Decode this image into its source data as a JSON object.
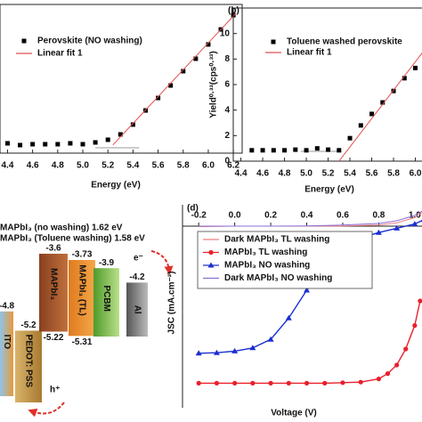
{
  "chart_data": [
    {
      "type": "scatter",
      "xlabel": "Energy (eV)",
      "xlim": [
        4.34,
        6.27
      ],
      "ylim": [
        0,
        10
      ],
      "xticks": [
        4.4,
        4.6,
        4.8,
        {
          "value": 5,
          "label": "5.0"
        },
        5.2,
        5.4,
        5.6,
        5.8,
        {
          "value": 6,
          "label": "6.0"
        },
        6.2
      ],
      "legend": "upper left",
      "series": [
        {
          "name": "Perovskite (NO washing)",
          "color": "#000000",
          "marker": "square",
          "line": false,
          "x": [
            4.4,
            4.5,
            4.6,
            4.7,
            4.8,
            4.9,
            5.0,
            5.1,
            5.2,
            5.3,
            5.4,
            5.5,
            5.6,
            5.7,
            5.8,
            5.9,
            6.0,
            6.1,
            6.2
          ],
          "values": [
            0.66,
            0.54,
            0.6,
            0.6,
            0.6,
            0.66,
            0.6,
            0.72,
            0.9,
            1.26,
            1.92,
            2.87,
            3.71,
            4.55,
            5.51,
            6.35,
            7.31,
            8.32,
            9.28
          ]
        },
        {
          "name": "Linear fit 1",
          "color": "#e05050",
          "marker": "none",
          "line": true,
          "x": [
            5.24,
            6.22
          ],
          "values": [
            0.55,
            9.4
          ]
        }
      ],
      "guides": [
        {
          "x": [
            5.1,
            5.45
          ],
          "y": [
            0.36,
            0.36
          ]
        }
      ]
    },
    {
      "type": "scatter",
      "panel_label": "(b)",
      "xlabel": "Energy (eV)",
      "ylabel": "Yield⁰·³³(cps⁰·³³)",
      "xlim": [
        4.33,
        6.11
      ],
      "ylim": [
        0,
        12
      ],
      "xticks": [
        4.4,
        4.6,
        4.8,
        {
          "value": 5,
          "label": "5.0"
        },
        5.2,
        5.4,
        5.6,
        5.8,
        {
          "value": 6,
          "label": "6.0"
        }
      ],
      "yticks": [
        0,
        2,
        4,
        6,
        8,
        10
      ],
      "legend": "upper left",
      "series": [
        {
          "name": "Toluene washed perovskite",
          "color": "#000000",
          "marker": "square",
          "line": false,
          "x": [
            4.5,
            4.6,
            4.7,
            4.8,
            4.9,
            5.0,
            5.1,
            5.2,
            5.3,
            5.4,
            5.5,
            5.6,
            5.7,
            5.8,
            5.9,
            6.0,
            6.1
          ],
          "values": [
            0.85,
            0.85,
            0.85,
            0.85,
            0.9,
            0.85,
            1.0,
            0.9,
            0.85,
            1.8,
            2.8,
            3.7,
            4.6,
            5.5,
            6.5,
            7.3,
            8.4
          ]
        },
        {
          "name": "Linear fit 1",
          "color": "#e05050",
          "marker": "none",
          "line": true,
          "x": [
            5.3,
            6.1
          ],
          "values": [
            0,
            8.9
          ]
        }
      ],
      "guides": [
        {
          "x": [
            4.95,
            5.3
          ],
          "y": [
            0.77,
            0.77
          ]
        }
      ]
    },
    {
      "type": "line",
      "panel_label": "(d)",
      "xlabel": "Voltage (V)",
      "ylabel": "JSC (mA.cm⁻²)",
      "xlim": [
        -0.29,
        1.07
      ],
      "ylim": [
        -17,
        2
      ],
      "xticks": [
        -0.2,
        {
          "value": 0,
          "label": "0.0"
        },
        0.2,
        0.4,
        0.6,
        0.8,
        {
          "value": 1,
          "label": "1.0"
        }
      ],
      "legend": "upper left",
      "series": [
        {
          "name": "Dark MAPbI₃ TL washing",
          "color": "#f08080",
          "marker": "none",
          "line": true,
          "x": [
            -0.2,
            0,
            0.2,
            0.4,
            0.6,
            0.8,
            0.9,
            1.0,
            1.05
          ],
          "values": [
            -0.05,
            0,
            0,
            0,
            0.02,
            0.1,
            0.3,
            0.8,
            1.4
          ]
        },
        {
          "name": "MAPbI₃ TL washing",
          "color": "#e8202a",
          "marker": "circle",
          "line": true,
          "x": [
            -0.2,
            -0.1,
            0,
            0.1,
            0.2,
            0.3,
            0.4,
            0.5,
            0.6,
            0.7,
            0.8,
            0.85,
            0.9,
            0.95,
            1.0,
            1.03
          ],
          "values": [
            -14.7,
            -14.7,
            -14.7,
            -14.7,
            -14.7,
            -14.7,
            -14.7,
            -14.7,
            -14.65,
            -14.6,
            -14.3,
            -13.8,
            -13,
            -11.5,
            -9.3,
            -7
          ]
        },
        {
          "name": "MAPbI₃ NO washing",
          "color": "#1a2fd0",
          "marker": "triangle",
          "line": true,
          "x": [
            -0.2,
            -0.1,
            0,
            0.1,
            0.2,
            0.3,
            0.4,
            0.5,
            0.6,
            0.7,
            0.8,
            0.9,
            1.0,
            1.05
          ],
          "values": [
            -11.9,
            -11.85,
            -11.7,
            -11.4,
            -10.6,
            -8.6,
            -6,
            -3.7,
            -2,
            -1.1,
            -0.6,
            -0.2,
            0.2,
            0.6
          ]
        },
        {
          "name": "Dark MAPbI₃ NO washing",
          "color": "#8a6fd8",
          "marker": "none",
          "line": true,
          "x": [
            -0.2,
            0,
            0.2,
            0.4,
            0.6,
            0.8,
            0.9,
            1.0,
            1.05
          ],
          "values": [
            0,
            0,
            0,
            0.02,
            0.1,
            0.25,
            0.5,
            1.0,
            1.5
          ]
        }
      ]
    }
  ],
  "diagram": {
    "notes": [
      "MAPbI₃ (no washing) 1.62 eV",
      "MAPbI₃ (Toluene washing) 1.58 eV"
    ],
    "carriers": [
      "e⁻",
      "h⁺"
    ],
    "layers": [
      {
        "label": "ITO",
        "top": -4.8
      },
      {
        "label": "PEDOT: PSS",
        "top": -5.2
      },
      {
        "label": "MAPbI₃",
        "top": -3.6,
        "bottom": -5.22
      },
      {
        "label": "MAPbI₃ (TL)",
        "top": -3.73,
        "bottom": -5.31
      },
      {
        "label": "PCBM",
        "top": -3.9
      },
      {
        "label": "Al",
        "top": -4.2
      }
    ]
  }
}
